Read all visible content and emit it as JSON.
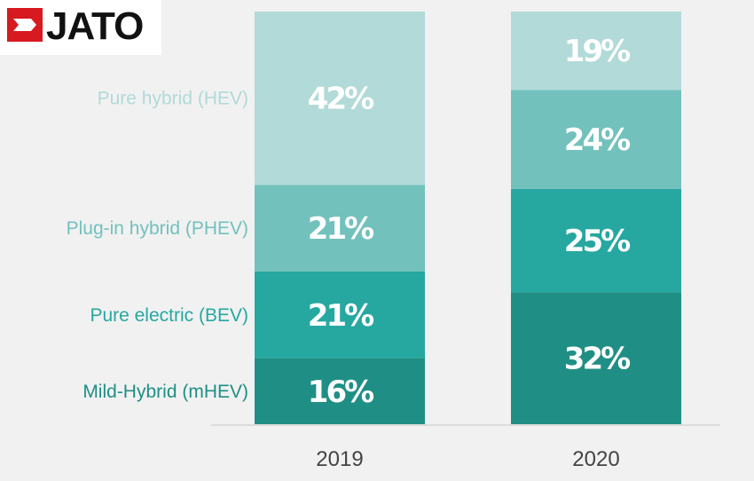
{
  "brand": {
    "name": "JATO",
    "accent": "#d71920"
  },
  "chart_data": {
    "type": "bar",
    "stacked": true,
    "percent": true,
    "categories": [
      "2019",
      "2020"
    ],
    "series": [
      {
        "name": "Mild-Hybrid (mHEV)",
        "values": [
          16,
          32
        ],
        "color": "#1f8f85",
        "label_color": "#1f8f85"
      },
      {
        "name": "Pure electric (BEV)",
        "values": [
          21,
          25
        ],
        "color": "#26a8a0",
        "label_color": "#26a8a0"
      },
      {
        "name": "Plug-in hybrid (PHEV)",
        "values": [
          21,
          24
        ],
        "color": "#72c1bd",
        "label_color": "#72c1bd"
      },
      {
        "name": "Pure hybrid (HEV)",
        "values": [
          42,
          19
        ],
        "color": "#b1dad8",
        "label_color": "#b1dad8"
      }
    ],
    "ylim": [
      0,
      100
    ],
    "grid": false,
    "legend": "left, aligned with 2019 segments"
  }
}
